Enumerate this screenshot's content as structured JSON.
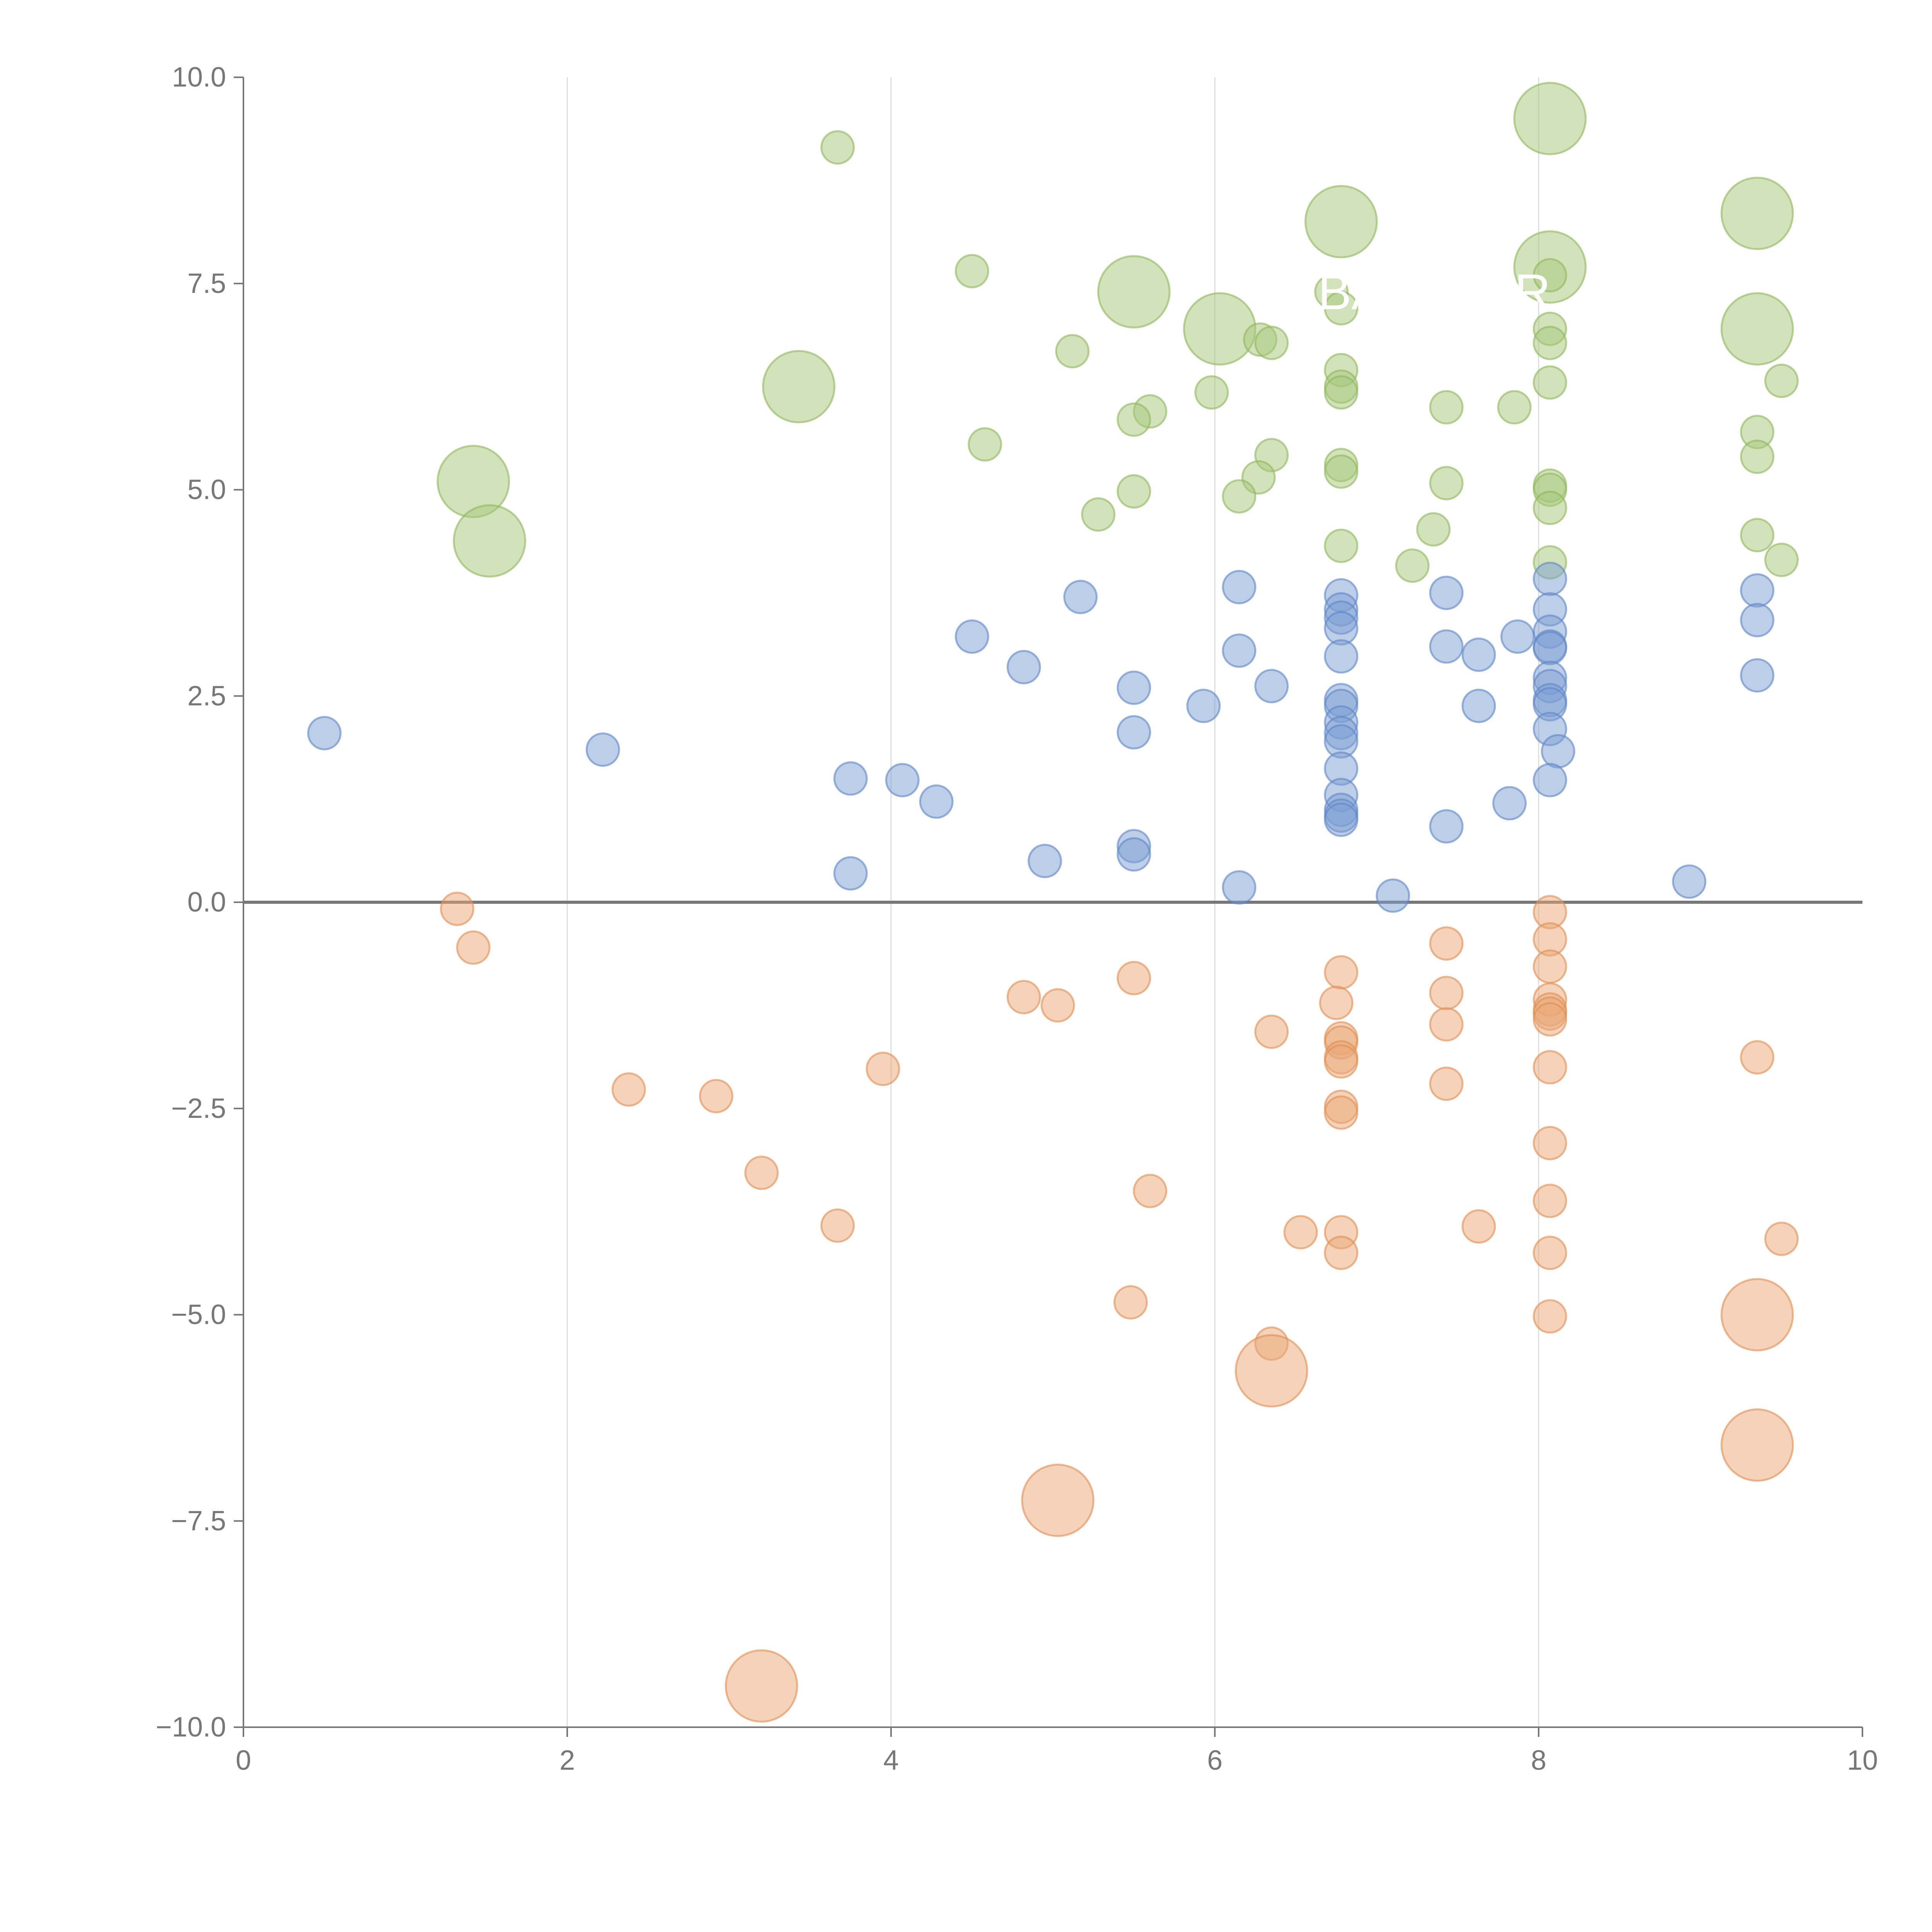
{
  "chart_data": {
    "type": "scatter",
    "title": "",
    "xlabel": "",
    "ylabel": "",
    "xlim": [
      0,
      10
    ],
    "ylim": [
      -10,
      10
    ],
    "x_ticks": [
      "0",
      "2",
      "4",
      "6",
      "8",
      "10"
    ],
    "y_ticks": [
      "10.0",
      "7.5",
      "5.0",
      "2.5",
      "0.0",
      "-2.5",
      "-5.0",
      "-7.5",
      "-10.0"
    ],
    "x_tick_values": [
      0,
      2,
      4,
      6,
      8,
      10
    ],
    "y_tick_values": [
      10,
      7.5,
      5,
      2.5,
      0,
      -2.5,
      -5,
      -7.5,
      -10
    ],
    "vertical_grid": [
      2,
      4,
      6,
      8
    ],
    "zero_line": 0,
    "annotation_label": "BA",
    "annotation_partial": "R",
    "series": [
      {
        "name": "green",
        "color": "#a6c77a",
        "stroke": "#8fb65e",
        "points": [
          {
            "x": 3.67,
            "y": 9.15,
            "r": 1
          },
          {
            "x": 8.07,
            "y": 9.5,
            "r": 2.2
          },
          {
            "x": 9.35,
            "y": 8.35,
            "r": 2.2
          },
          {
            "x": 6.78,
            "y": 8.25,
            "r": 2.2
          },
          {
            "x": 4.5,
            "y": 7.65,
            "r": 1
          },
          {
            "x": 8.07,
            "y": 7.7,
            "r": 2.2
          },
          {
            "x": 8.07,
            "y": 7.6,
            "r": 1
          },
          {
            "x": 5.5,
            "y": 7.4,
            "r": 2.2
          },
          {
            "x": 6.72,
            "y": 7.4,
            "r": 1
          },
          {
            "x": 6.78,
            "y": 7.2,
            "r": 1
          },
          {
            "x": 6.03,
            "y": 6.95,
            "r": 2.2
          },
          {
            "x": 9.35,
            "y": 6.95,
            "r": 2.2
          },
          {
            "x": 8.07,
            "y": 6.95,
            "r": 1
          },
          {
            "x": 6.28,
            "y": 6.82,
            "r": 1
          },
          {
            "x": 6.35,
            "y": 6.78,
            "r": 1
          },
          {
            "x": 8.07,
            "y": 6.78,
            "r": 1
          },
          {
            "x": 5.12,
            "y": 6.68,
            "r": 1
          },
          {
            "x": 6.78,
            "y": 6.45,
            "r": 1
          },
          {
            "x": 8.07,
            "y": 6.3,
            "r": 1
          },
          {
            "x": 9.5,
            "y": 6.32,
            "r": 1
          },
          {
            "x": 3.43,
            "y": 6.25,
            "r": 2.2
          },
          {
            "x": 6.78,
            "y": 6.25,
            "r": 1
          },
          {
            "x": 6.78,
            "y": 6.18,
            "r": 1
          },
          {
            "x": 5.98,
            "y": 6.18,
            "r": 1
          },
          {
            "x": 7.43,
            "y": 6.0,
            "r": 1
          },
          {
            "x": 7.85,
            "y": 6.0,
            "r": 1
          },
          {
            "x": 5.6,
            "y": 5.95,
            "r": 1
          },
          {
            "x": 5.5,
            "y": 5.85,
            "r": 1
          },
          {
            "x": 9.35,
            "y": 5.7,
            "r": 1
          },
          {
            "x": 4.58,
            "y": 5.55,
            "r": 1
          },
          {
            "x": 6.35,
            "y": 5.42,
            "r": 1
          },
          {
            "x": 9.35,
            "y": 5.4,
            "r": 1
          },
          {
            "x": 6.78,
            "y": 5.3,
            "r": 1
          },
          {
            "x": 6.78,
            "y": 5.22,
            "r": 1
          },
          {
            "x": 6.27,
            "y": 5.15,
            "r": 1
          },
          {
            "x": 1.42,
            "y": 5.1,
            "r": 2.2
          },
          {
            "x": 7.43,
            "y": 5.08,
            "r": 1
          },
          {
            "x": 8.07,
            "y": 5.05,
            "r": 1
          },
          {
            "x": 8.07,
            "y": 5.0,
            "r": 1
          },
          {
            "x": 5.5,
            "y": 4.98,
            "r": 1
          },
          {
            "x": 6.15,
            "y": 4.92,
            "r": 1
          },
          {
            "x": 8.07,
            "y": 4.78,
            "r": 1
          },
          {
            "x": 5.28,
            "y": 4.7,
            "r": 1
          },
          {
            "x": 7.35,
            "y": 4.52,
            "r": 1
          },
          {
            "x": 9.35,
            "y": 4.45,
            "r": 1
          },
          {
            "x": 1.52,
            "y": 4.38,
            "r": 2.2
          },
          {
            "x": 6.78,
            "y": 4.32,
            "r": 1
          },
          {
            "x": 9.5,
            "y": 4.15,
            "r": 1
          },
          {
            "x": 8.07,
            "y": 4.12,
            "r": 1
          },
          {
            "x": 7.22,
            "y": 4.08,
            "r": 1
          }
        ]
      },
      {
        "name": "blue",
        "color": "#7b9ed3",
        "stroke": "#5e86c4",
        "points": [
          {
            "x": 8.07,
            "y": 3.92,
            "r": 1
          },
          {
            "x": 6.15,
            "y": 3.82,
            "r": 1
          },
          {
            "x": 9.35,
            "y": 3.78,
            "r": 1
          },
          {
            "x": 7.43,
            "y": 3.75,
            "r": 1
          },
          {
            "x": 6.78,
            "y": 3.72,
            "r": 1
          },
          {
            "x": 5.17,
            "y": 3.7,
            "r": 1
          },
          {
            "x": 6.78,
            "y": 3.55,
            "r": 1
          },
          {
            "x": 8.07,
            "y": 3.55,
            "r": 1
          },
          {
            "x": 6.78,
            "y": 3.45,
            "r": 1
          },
          {
            "x": 9.35,
            "y": 3.42,
            "r": 1
          },
          {
            "x": 6.78,
            "y": 3.32,
            "r": 1
          },
          {
            "x": 8.07,
            "y": 3.28,
            "r": 1
          },
          {
            "x": 4.5,
            "y": 3.22,
            "r": 1
          },
          {
            "x": 7.87,
            "y": 3.22,
            "r": 1
          },
          {
            "x": 7.43,
            "y": 3.1,
            "r": 1
          },
          {
            "x": 8.07,
            "y": 3.1,
            "r": 1
          },
          {
            "x": 8.07,
            "y": 3.08,
            "r": 1
          },
          {
            "x": 6.15,
            "y": 3.05,
            "r": 1
          },
          {
            "x": 7.63,
            "y": 3.0,
            "r": 1
          },
          {
            "x": 6.78,
            "y": 2.98,
            "r": 1
          },
          {
            "x": 4.82,
            "y": 2.85,
            "r": 1
          },
          {
            "x": 9.35,
            "y": 2.75,
            "r": 1
          },
          {
            "x": 8.07,
            "y": 2.72,
            "r": 1
          },
          {
            "x": 8.07,
            "y": 2.62,
            "r": 1
          },
          {
            "x": 6.35,
            "y": 2.62,
            "r": 1
          },
          {
            "x": 5.5,
            "y": 2.6,
            "r": 1
          },
          {
            "x": 6.78,
            "y": 2.45,
            "r": 1
          },
          {
            "x": 8.07,
            "y": 2.45,
            "r": 1
          },
          {
            "x": 8.07,
            "y": 2.4,
            "r": 1
          },
          {
            "x": 5.93,
            "y": 2.38,
            "r": 1
          },
          {
            "x": 7.63,
            "y": 2.38,
            "r": 1
          },
          {
            "x": 6.78,
            "y": 2.38,
            "r": 1
          },
          {
            "x": 6.78,
            "y": 2.18,
            "r": 1
          },
          {
            "x": 8.07,
            "y": 2.1,
            "r": 1
          },
          {
            "x": 5.5,
            "y": 2.06,
            "r": 1
          },
          {
            "x": 0.5,
            "y": 2.05,
            "r": 1
          },
          {
            "x": 6.78,
            "y": 2.05,
            "r": 1
          },
          {
            "x": 6.78,
            "y": 1.95,
            "r": 1
          },
          {
            "x": 2.22,
            "y": 1.85,
            "r": 1
          },
          {
            "x": 8.12,
            "y": 1.83,
            "r": 1
          },
          {
            "x": 6.78,
            "y": 1.62,
            "r": 1
          },
          {
            "x": 3.75,
            "y": 1.5,
            "r": 1
          },
          {
            "x": 4.07,
            "y": 1.48,
            "r": 1
          },
          {
            "x": 8.07,
            "y": 1.48,
            "r": 1
          },
          {
            "x": 6.78,
            "y": 1.3,
            "r": 1
          },
          {
            "x": 4.28,
            "y": 1.22,
            "r": 1
          },
          {
            "x": 7.82,
            "y": 1.2,
            "r": 1
          },
          {
            "x": 6.78,
            "y": 1.12,
            "r": 1
          },
          {
            "x": 6.78,
            "y": 1.05,
            "r": 1
          },
          {
            "x": 6.78,
            "y": 1.0,
            "r": 1
          },
          {
            "x": 7.43,
            "y": 0.92,
            "r": 1
          },
          {
            "x": 5.5,
            "y": 0.68,
            "r": 1
          },
          {
            "x": 5.5,
            "y": 0.58,
            "r": 1
          },
          {
            "x": 4.95,
            "y": 0.5,
            "r": 1
          },
          {
            "x": 3.75,
            "y": 0.35,
            "r": 1
          },
          {
            "x": 8.93,
            "y": 0.25,
            "r": 1
          },
          {
            "x": 6.15,
            "y": 0.18,
            "r": 1
          },
          {
            "x": 7.1,
            "y": 0.08,
            "r": 1
          }
        ]
      },
      {
        "name": "orange",
        "color": "#e9a876",
        "stroke": "#df8e54",
        "points": [
          {
            "x": 1.32,
            "y": -0.08,
            "r": 1
          },
          {
            "x": 8.07,
            "y": -0.12,
            "r": 1
          },
          {
            "x": 8.07,
            "y": -0.45,
            "r": 1
          },
          {
            "x": 7.43,
            "y": -0.5,
            "r": 1
          },
          {
            "x": 1.42,
            "y": -0.55,
            "r": 1
          },
          {
            "x": 8.07,
            "y": -0.78,
            "r": 1
          },
          {
            "x": 6.78,
            "y": -0.85,
            "r": 1
          },
          {
            "x": 5.5,
            "y": -0.92,
            "r": 1
          },
          {
            "x": 7.43,
            "y": -1.1,
            "r": 1
          },
          {
            "x": 4.82,
            "y": -1.15,
            "r": 1
          },
          {
            "x": 8.07,
            "y": -1.18,
            "r": 1
          },
          {
            "x": 6.75,
            "y": -1.22,
            "r": 1
          },
          {
            "x": 5.03,
            "y": -1.25,
            "r": 1
          },
          {
            "x": 8.07,
            "y": -1.3,
            "r": 1
          },
          {
            "x": 8.07,
            "y": -1.35,
            "r": 1
          },
          {
            "x": 8.07,
            "y": -1.42,
            "r": 1
          },
          {
            "x": 7.43,
            "y": -1.48,
            "r": 1
          },
          {
            "x": 6.35,
            "y": -1.57,
            "r": 1
          },
          {
            "x": 6.78,
            "y": -1.65,
            "r": 1
          },
          {
            "x": 6.78,
            "y": -1.7,
            "r": 1
          },
          {
            "x": 9.35,
            "y": -1.88,
            "r": 1
          },
          {
            "x": 6.78,
            "y": -1.88,
            "r": 1
          },
          {
            "x": 6.78,
            "y": -1.93,
            "r": 1
          },
          {
            "x": 3.95,
            "y": -2.02,
            "r": 1
          },
          {
            "x": 8.07,
            "y": -2.0,
            "r": 1
          },
          {
            "x": 7.43,
            "y": -2.2,
            "r": 1
          },
          {
            "x": 2.38,
            "y": -2.27,
            "r": 1
          },
          {
            "x": 2.92,
            "y": -2.35,
            "r": 1
          },
          {
            "x": 6.78,
            "y": -2.48,
            "r": 1
          },
          {
            "x": 6.78,
            "y": -2.55,
            "r": 1
          },
          {
            "x": 8.07,
            "y": -2.92,
            "r": 1
          },
          {
            "x": 3.2,
            "y": -3.28,
            "r": 1
          },
          {
            "x": 5.6,
            "y": -3.5,
            "r": 1
          },
          {
            "x": 8.07,
            "y": -3.62,
            "r": 1
          },
          {
            "x": 3.67,
            "y": -3.92,
            "r": 1
          },
          {
            "x": 7.63,
            "y": -3.93,
            "r": 1
          },
          {
            "x": 6.53,
            "y": -4.0,
            "r": 1
          },
          {
            "x": 6.78,
            "y": -4.0,
            "r": 1
          },
          {
            "x": 9.5,
            "y": -4.08,
            "r": 1
          },
          {
            "x": 6.78,
            "y": -4.25,
            "r": 1
          },
          {
            "x": 8.07,
            "y": -4.25,
            "r": 1
          },
          {
            "x": 5.48,
            "y": -4.85,
            "r": 1
          },
          {
            "x": 9.35,
            "y": -5.0,
            "r": 2.2
          },
          {
            "x": 8.07,
            "y": -5.02,
            "r": 1
          },
          {
            "x": 6.35,
            "y": -5.35,
            "r": 1
          },
          {
            "x": 6.35,
            "y": -5.68,
            "r": 2.2
          },
          {
            "x": 9.35,
            "y": -6.58,
            "r": 2.2
          },
          {
            "x": 5.03,
            "y": -7.25,
            "r": 2.2
          },
          {
            "x": 3.2,
            "y": -9.5,
            "r": 2.2
          }
        ]
      }
    ]
  }
}
